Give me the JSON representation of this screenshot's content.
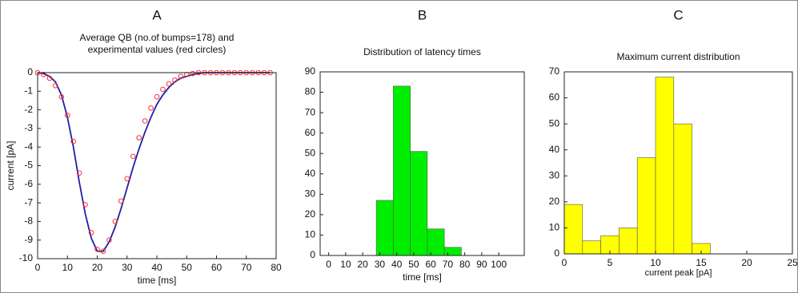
{
  "chart_data": [
    {
      "type": "line",
      "label": "A",
      "title": [
        "Average QB (no.of bumps=178) and",
        "experimental values (red circles)"
      ],
      "x_label": "time [ms]",
      "y_label": "current [pA]",
      "x": [
        0,
        2,
        4,
        6,
        8,
        10,
        12,
        14,
        16,
        18,
        20,
        22,
        24,
        26,
        28,
        30,
        32,
        34,
        36,
        38,
        40,
        42,
        44,
        46,
        48,
        50,
        52,
        54,
        56,
        58,
        60,
        62,
        64,
        66,
        68,
        70,
        72,
        74,
        76,
        78
      ],
      "series": [
        {
          "color": "#1f1fa8",
          "style": "line",
          "values": [
            0,
            -0.05,
            -0.2,
            -0.5,
            -1.2,
            -2.4,
            -4.0,
            -5.9,
            -7.6,
            -8.9,
            -9.6,
            -9.6,
            -9.1,
            -8.3,
            -7.3,
            -6.2,
            -5.1,
            -4.1,
            -3.2,
            -2.4,
            -1.7,
            -1.2,
            -0.8,
            -0.5,
            -0.3,
            -0.2,
            -0.1,
            -0.05,
            0,
            0,
            0,
            0,
            0,
            0,
            0,
            0,
            0,
            0,
            0,
            0
          ]
        },
        {
          "color": "#ff3030",
          "style": "circles",
          "values": [
            0,
            -0.1,
            -0.3,
            -0.7,
            -1.3,
            -2.3,
            -3.7,
            -5.4,
            -7.1,
            -8.6,
            -9.5,
            -9.6,
            -9.0,
            -8.0,
            -6.9,
            -5.7,
            -4.5,
            -3.5,
            -2.6,
            -1.9,
            -1.3,
            -0.9,
            -0.6,
            -0.4,
            -0.2,
            -0.1,
            -0.05,
            0,
            0,
            0,
            0,
            0,
            0,
            0,
            0,
            0,
            0,
            0,
            0,
            0
          ]
        }
      ],
      "xlim": [
        0,
        80
      ],
      "xticks": [
        0,
        10,
        20,
        30,
        40,
        50,
        60,
        70,
        80
      ],
      "ylim": [
        -10,
        0
      ],
      "yticks": [
        0,
        -1,
        -2,
        -3,
        -4,
        -5,
        -6,
        -7,
        -8,
        -9,
        -10
      ]
    },
    {
      "type": "histogram",
      "label": "B",
      "title": [
        "Distribution of latency times"
      ],
      "x_label": "time [ms]",
      "bins": [
        28,
        38,
        48,
        58,
        68,
        78
      ],
      "counts": [
        27,
        83,
        51,
        13,
        4
      ],
      "color": "#00ee00",
      "xlim": [
        -5,
        115
      ],
      "xticks": [
        0,
        10,
        20,
        30,
        40,
        50,
        60,
        70,
        80,
        90,
        100
      ],
      "ylim": [
        0,
        90
      ],
      "yticks": [
        0,
        10,
        20,
        30,
        40,
        50,
        60,
        70,
        80,
        90
      ]
    },
    {
      "type": "histogram",
      "label": "C",
      "title": [
        "Maximum current distribution"
      ],
      "x_label": "current peak [pA]",
      "bins": [
        0,
        2,
        4,
        6,
        8,
        10,
        12,
        14,
        16
      ],
      "counts": [
        19,
        5,
        7,
        10,
        37,
        68,
        50,
        4
      ],
      "color": "#ffff00",
      "xlim": [
        0,
        25
      ],
      "xticks": [
        0,
        5,
        10,
        15,
        20,
        25
      ],
      "ylim": [
        0,
        70
      ],
      "yticks": [
        0,
        10,
        20,
        30,
        40,
        50,
        60,
        70
      ]
    }
  ]
}
